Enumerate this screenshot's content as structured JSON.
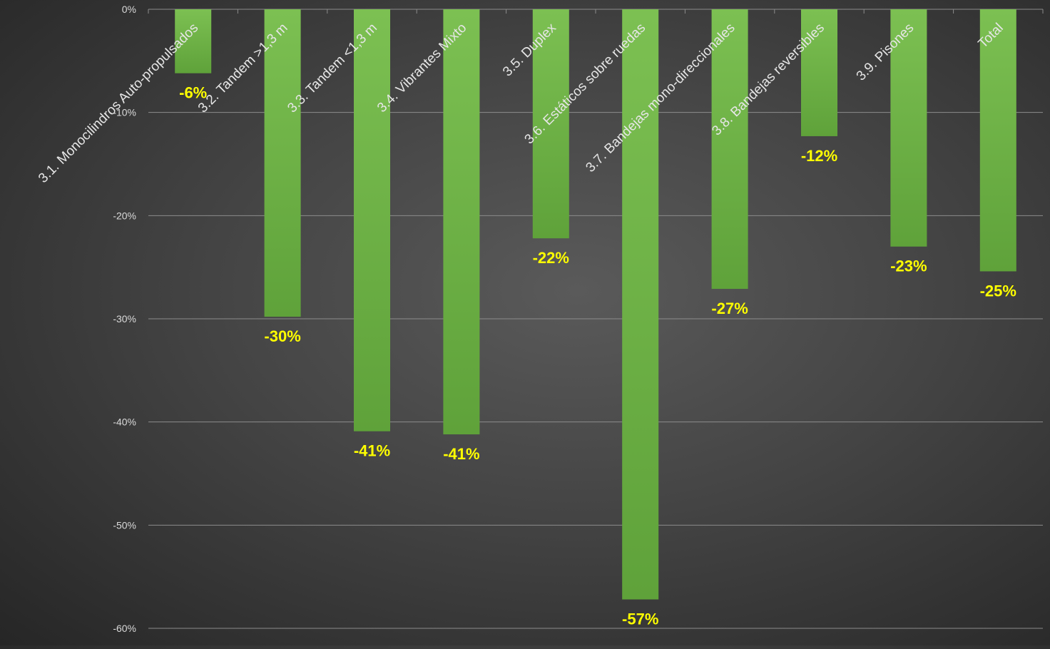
{
  "colors": {
    "bar": "#6cb044",
    "bar_top": "#7cc052",
    "bar_bottom": "#5fa23a",
    "data_label": "#ffff00",
    "axis_text": "#d9d9d9",
    "category_text": "#e6e6e6",
    "gridline": "#8c8c8c"
  },
  "chart_data": {
    "type": "bar",
    "categories": [
      "3.1. Monocilindros Auto-propulsados",
      "3.2. Tandem >1,3 m",
      "3.3. Tandem <1,3 m",
      "3.4. Vibrantes Mixto",
      "3.5. Duplex",
      "3.6. Estáticos sobre ruedas",
      "3.7. Bandejas mono-direccionales",
      "3.8. Bandejas reversibles",
      "3.9. Pisones",
      "Total"
    ],
    "values": [
      -6.2,
      -29.8,
      -40.9,
      -41.2,
      -22.2,
      -57.2,
      -27.1,
      -12.3,
      -23.0,
      -25.4
    ],
    "data_labels": [
      "-6%",
      "-30%",
      "-41%",
      "-41%",
      "-22%",
      "-57%",
      "-27%",
      "-12%",
      "-23%",
      "-25%"
    ],
    "yticks": [
      0,
      -10,
      -20,
      -30,
      -40,
      -50,
      -60
    ],
    "ytick_labels": [
      "0%",
      "-10%",
      "-20%",
      "-30%",
      "-40%",
      "-50%",
      "-60%"
    ],
    "ylim": [
      -60,
      0
    ],
    "grid": true,
    "legend": "none",
    "title": "",
    "xlabel": "",
    "ylabel": ""
  }
}
